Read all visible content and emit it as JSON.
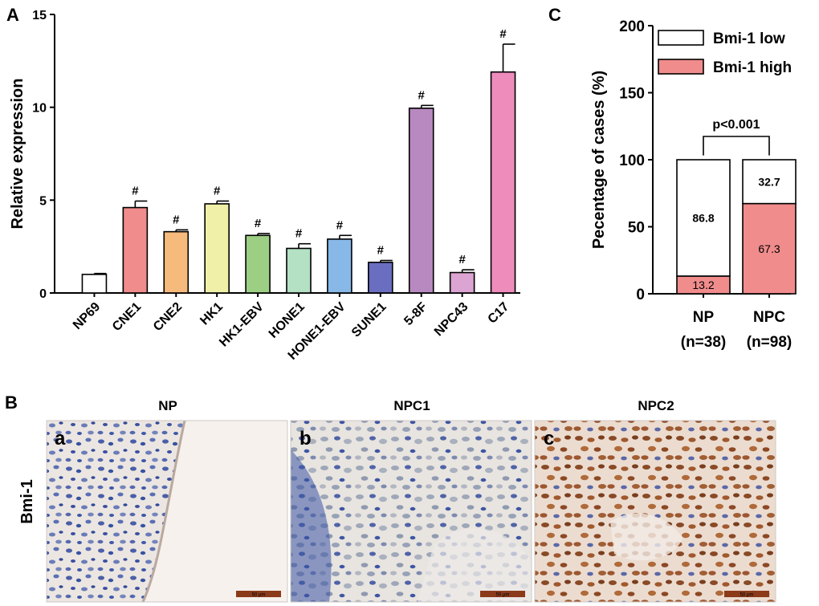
{
  "panels": {
    "A": "A",
    "B": "B",
    "C": "C"
  },
  "chart_data": [
    {
      "type": "bar",
      "panel": "A",
      "ylabel": "Relative expression",
      "ylim": [
        0,
        15
      ],
      "yticks": [
        "0",
        "5",
        "10",
        "15"
      ],
      "categories": [
        "NP69",
        "CNE1",
        "CNE2",
        "HK1",
        "HK1-EBV",
        "HONE1",
        "HONE1-EBV",
        "SUNE1",
        "5-8F",
        "NPC43",
        "C17"
      ],
      "values": [
        1.0,
        4.6,
        3.3,
        4.8,
        3.1,
        2.4,
        2.9,
        1.65,
        9.95,
        1.1,
        11.9
      ],
      "errors": [
        0.05,
        0.35,
        0.1,
        0.15,
        0.1,
        0.25,
        0.2,
        0.1,
        0.15,
        0.15,
        1.5
      ],
      "annotations": [
        "",
        "#",
        "#",
        "#",
        "#",
        "#",
        "#",
        "#",
        "#",
        "#",
        "#"
      ],
      "colors": [
        "#ffffff",
        "#f08c8c",
        "#f6ba7c",
        "#f0f0a8",
        "#9ccf84",
        "#b4e0c4",
        "#88b8e8",
        "#6a6ec0",
        "#b889c0",
        "#dba4d2",
        "#ee8cbc"
      ],
      "grid": false,
      "error_bars": true
    },
    {
      "type": "bar",
      "stacked": true,
      "panel": "C",
      "ylabel": "Pecentage of cases (%)",
      "ylim": [
        0,
        200
      ],
      "yticks": [
        "0",
        "50",
        "100",
        "150",
        "200"
      ],
      "categories": [
        "NP",
        "NPC"
      ],
      "category_sublabels": [
        "(n=38)",
        "(n=98)"
      ],
      "series": [
        {
          "name": "Bmi-1 high",
          "values": [
            13.2,
            67.3
          ],
          "labels": [
            "13.2",
            "67.3"
          ],
          "color": "#f08c8c"
        },
        {
          "name": "Bmi-1 low",
          "values": [
            86.8,
            32.7
          ],
          "labels": [
            "86.8",
            "32.7"
          ],
          "color": "#ffffff"
        }
      ],
      "legend": [
        "Bmi-1 low",
        "Bmi-1 high"
      ],
      "legend_position": "top-right",
      "significance": "p<0.001",
      "grid": false
    }
  ],
  "panel_b": {
    "row_label": "Bmi-1",
    "images": [
      {
        "title": "NP",
        "letter": "a",
        "scale": "50 μm"
      },
      {
        "title": "NPC1",
        "letter": "b",
        "scale": "50 μm"
      },
      {
        "title": "NPC2",
        "letter": "c",
        "scale": "50 μm"
      }
    ]
  }
}
